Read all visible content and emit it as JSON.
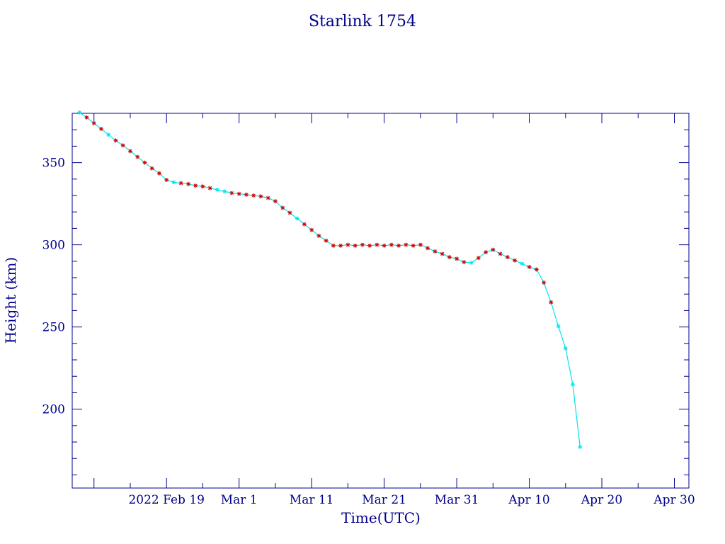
{
  "chart_data": {
    "type": "line",
    "title": "Starlink 1754",
    "xlabel": "Time(UTC)",
    "ylabel": "Height (km)",
    "x_unit": "date",
    "xlim": [
      "2022-02-06",
      "2022-05-02"
    ],
    "ylim": [
      152,
      380
    ],
    "x_ticks": [
      {
        "date": "2022-02-19",
        "label": "2022 Feb 19"
      },
      {
        "date": "2022-03-01",
        "label": "Mar  1"
      },
      {
        "date": "2022-03-11",
        "label": "Mar 11"
      },
      {
        "date": "2022-03-21",
        "label": "Mar 21"
      },
      {
        "date": "2022-03-31",
        "label": "Mar 31"
      },
      {
        "date": "2022-04-10",
        "label": "Apr 10"
      },
      {
        "date": "2022-04-20",
        "label": "Apr 20"
      },
      {
        "date": "2022-04-30",
        "label": "Apr 30"
      }
    ],
    "y_ticks": [
      {
        "value": 200,
        "label": "200"
      },
      {
        "value": 250,
        "label": "250"
      },
      {
        "value": 300,
        "label": "300"
      },
      {
        "value": 350,
        "label": "350"
      }
    ],
    "grid": false,
    "colors": {
      "axis": "#00008b",
      "line": "#00e5ee",
      "marker_a": "#00e5ee",
      "marker_b": "#cc0000"
    },
    "series": [
      {
        "values": [
          {
            "x": "2022-02-07",
            "y": 380.5,
            "m": "a"
          },
          {
            "x": "2022-02-08",
            "y": 377.5,
            "m": "b"
          },
          {
            "x": "2022-02-09",
            "y": 374.0,
            "m": "b"
          },
          {
            "x": "2022-02-10",
            "y": 370.5,
            "m": "b"
          },
          {
            "x": "2022-02-11",
            "y": 367.0,
            "m": "a"
          },
          {
            "x": "2022-02-12",
            "y": 363.5,
            "m": "b"
          },
          {
            "x": "2022-02-13",
            "y": 360.5,
            "m": "b"
          },
          {
            "x": "2022-02-14",
            "y": 357.0,
            "m": "b"
          },
          {
            "x": "2022-02-15",
            "y": 353.5,
            "m": "b"
          },
          {
            "x": "2022-02-16",
            "y": 350.0,
            "m": "b"
          },
          {
            "x": "2022-02-17",
            "y": 346.5,
            "m": "b"
          },
          {
            "x": "2022-02-18",
            "y": 343.5,
            "m": "b"
          },
          {
            "x": "2022-02-19",
            "y": 339.5,
            "m": "b"
          },
          {
            "x": "2022-02-20",
            "y": 338.0,
            "m": "a"
          },
          {
            "x": "2022-02-21",
            "y": 337.5,
            "m": "b"
          },
          {
            "x": "2022-02-22",
            "y": 337.0,
            "m": "b"
          },
          {
            "x": "2022-02-23",
            "y": 336.0,
            "m": "b"
          },
          {
            "x": "2022-02-24",
            "y": 335.5,
            "m": "b"
          },
          {
            "x": "2022-02-25",
            "y": 334.5,
            "m": "b"
          },
          {
            "x": "2022-02-26",
            "y": 333.5,
            "m": "a"
          },
          {
            "x": "2022-02-27",
            "y": 332.5,
            "m": "a"
          },
          {
            "x": "2022-02-28",
            "y": 331.5,
            "m": "b"
          },
          {
            "x": "2022-03-01",
            "y": 331.0,
            "m": "b"
          },
          {
            "x": "2022-03-02",
            "y": 330.5,
            "m": "b"
          },
          {
            "x": "2022-03-03",
            "y": 330.0,
            "m": "b"
          },
          {
            "x": "2022-03-04",
            "y": 329.5,
            "m": "b"
          },
          {
            "x": "2022-03-05",
            "y": 328.5,
            "m": "b"
          },
          {
            "x": "2022-03-06",
            "y": 326.5,
            "m": "b"
          },
          {
            "x": "2022-03-07",
            "y": 322.5,
            "m": "b"
          },
          {
            "x": "2022-03-08",
            "y": 319.5,
            "m": "b"
          },
          {
            "x": "2022-03-09",
            "y": 316.0,
            "m": "a"
          },
          {
            "x": "2022-03-10",
            "y": 312.5,
            "m": "b"
          },
          {
            "x": "2022-03-11",
            "y": 309.0,
            "m": "b"
          },
          {
            "x": "2022-03-12",
            "y": 305.5,
            "m": "b"
          },
          {
            "x": "2022-03-13",
            "y": 302.5,
            "m": "b"
          },
          {
            "x": "2022-03-14",
            "y": 299.5,
            "m": "b"
          },
          {
            "x": "2022-03-15",
            "y": 299.5,
            "m": "b"
          },
          {
            "x": "2022-03-16",
            "y": 300.0,
            "m": "b"
          },
          {
            "x": "2022-03-17",
            "y": 299.5,
            "m": "b"
          },
          {
            "x": "2022-03-18",
            "y": 300.0,
            "m": "b"
          },
          {
            "x": "2022-03-19",
            "y": 299.5,
            "m": "b"
          },
          {
            "x": "2022-03-20",
            "y": 300.0,
            "m": "b"
          },
          {
            "x": "2022-03-21",
            "y": 299.5,
            "m": "b"
          },
          {
            "x": "2022-03-22",
            "y": 300.0,
            "m": "b"
          },
          {
            "x": "2022-03-23",
            "y": 299.5,
            "m": "b"
          },
          {
            "x": "2022-03-24",
            "y": 300.0,
            "m": "b"
          },
          {
            "x": "2022-03-25",
            "y": 299.5,
            "m": "b"
          },
          {
            "x": "2022-03-26",
            "y": 300.0,
            "m": "b"
          },
          {
            "x": "2022-03-27",
            "y": 298.0,
            "m": "b"
          },
          {
            "x": "2022-03-28",
            "y": 296.0,
            "m": "b"
          },
          {
            "x": "2022-03-29",
            "y": 294.5,
            "m": "b"
          },
          {
            "x": "2022-03-30",
            "y": 292.5,
            "m": "b"
          },
          {
            "x": "2022-03-31",
            "y": 291.5,
            "m": "b"
          },
          {
            "x": "2022-04-01",
            "y": 289.5,
            "m": "b"
          },
          {
            "x": "2022-04-02",
            "y": 289.0,
            "m": "a"
          },
          {
            "x": "2022-04-03",
            "y": 292.0,
            "m": "b"
          },
          {
            "x": "2022-04-04",
            "y": 295.5,
            "m": "b"
          },
          {
            "x": "2022-04-05",
            "y": 297.0,
            "m": "b"
          },
          {
            "x": "2022-04-06",
            "y": 294.5,
            "m": "b"
          },
          {
            "x": "2022-04-07",
            "y": 292.5,
            "m": "b"
          },
          {
            "x": "2022-04-08",
            "y": 290.5,
            "m": "b"
          },
          {
            "x": "2022-04-09",
            "y": 288.5,
            "m": "a"
          },
          {
            "x": "2022-04-10",
            "y": 286.5,
            "m": "b"
          },
          {
            "x": "2022-04-11",
            "y": 285.0,
            "m": "b"
          },
          {
            "x": "2022-04-12",
            "y": 277.0,
            "m": "b"
          },
          {
            "x": "2022-04-13",
            "y": 265.0,
            "m": "b"
          },
          {
            "x": "2022-04-14",
            "y": 250.5,
            "m": "a"
          },
          {
            "x": "2022-04-15",
            "y": 237.0,
            "m": "a"
          },
          {
            "x": "2022-04-16",
            "y": 215.0,
            "m": "a"
          },
          {
            "x": "2022-04-17",
            "y": 177.0,
            "m": "a"
          }
        ]
      }
    ]
  }
}
